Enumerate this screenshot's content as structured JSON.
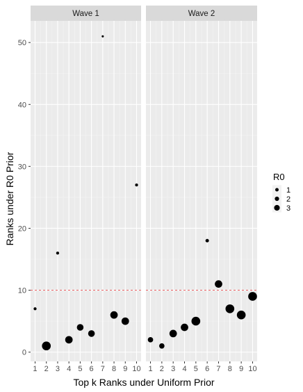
{
  "chart_data": {
    "type": "scatter",
    "xlabel": "Top k Ranks under Uniform Prior",
    "ylabel": "Ranks under R0 Prior",
    "x_ticks": [
      "1",
      "2",
      "3",
      "4",
      "5",
      "6",
      "7",
      "8",
      "9",
      "10"
    ],
    "y_ticks": [
      "0",
      "10",
      "20",
      "30",
      "40",
      "50"
    ],
    "xlim": [
      0.6,
      10.4
    ],
    "ylim": [
      -1.5,
      53.5
    ],
    "reference_line": {
      "y": 10,
      "color": "#e8474b",
      "style": "dashed"
    },
    "legend": {
      "title": "R0",
      "entries": [
        {
          "label": "1",
          "size": 1
        },
        {
          "label": "2",
          "size": 2
        },
        {
          "label": "3",
          "size": 3
        }
      ]
    },
    "panels": [
      {
        "name": "Wave 1",
        "points": [
          {
            "x": 1,
            "y": 7,
            "size": 0.6
          },
          {
            "x": 2,
            "y": 1,
            "size": 2.8
          },
          {
            "x": 3,
            "y": 16,
            "size": 0.6
          },
          {
            "x": 4,
            "y": 2,
            "size": 2.3
          },
          {
            "x": 5,
            "y": 4,
            "size": 2.0
          },
          {
            "x": 6,
            "y": 3,
            "size": 2.0
          },
          {
            "x": 7,
            "y": 51,
            "size": 0.3
          },
          {
            "x": 8,
            "y": 6,
            "size": 2.3
          },
          {
            "x": 9,
            "y": 5,
            "size": 2.3
          },
          {
            "x": 10,
            "y": 27,
            "size": 0.6
          }
        ]
      },
      {
        "name": "Wave 2",
        "points": [
          {
            "x": 1,
            "y": 2,
            "size": 1.5
          },
          {
            "x": 2,
            "y": 1,
            "size": 1.5
          },
          {
            "x": 3,
            "y": 3,
            "size": 2.3
          },
          {
            "x": 4,
            "y": 4,
            "size": 2.3
          },
          {
            "x": 5,
            "y": 5,
            "size": 2.8
          },
          {
            "x": 6,
            "y": 18,
            "size": 0.8
          },
          {
            "x": 7,
            "y": 11,
            "size": 2.3
          },
          {
            "x": 8,
            "y": 7,
            "size": 2.8
          },
          {
            "x": 9,
            "y": 6,
            "size": 2.8
          },
          {
            "x": 10,
            "y": 9,
            "size": 2.8
          }
        ]
      }
    ]
  }
}
